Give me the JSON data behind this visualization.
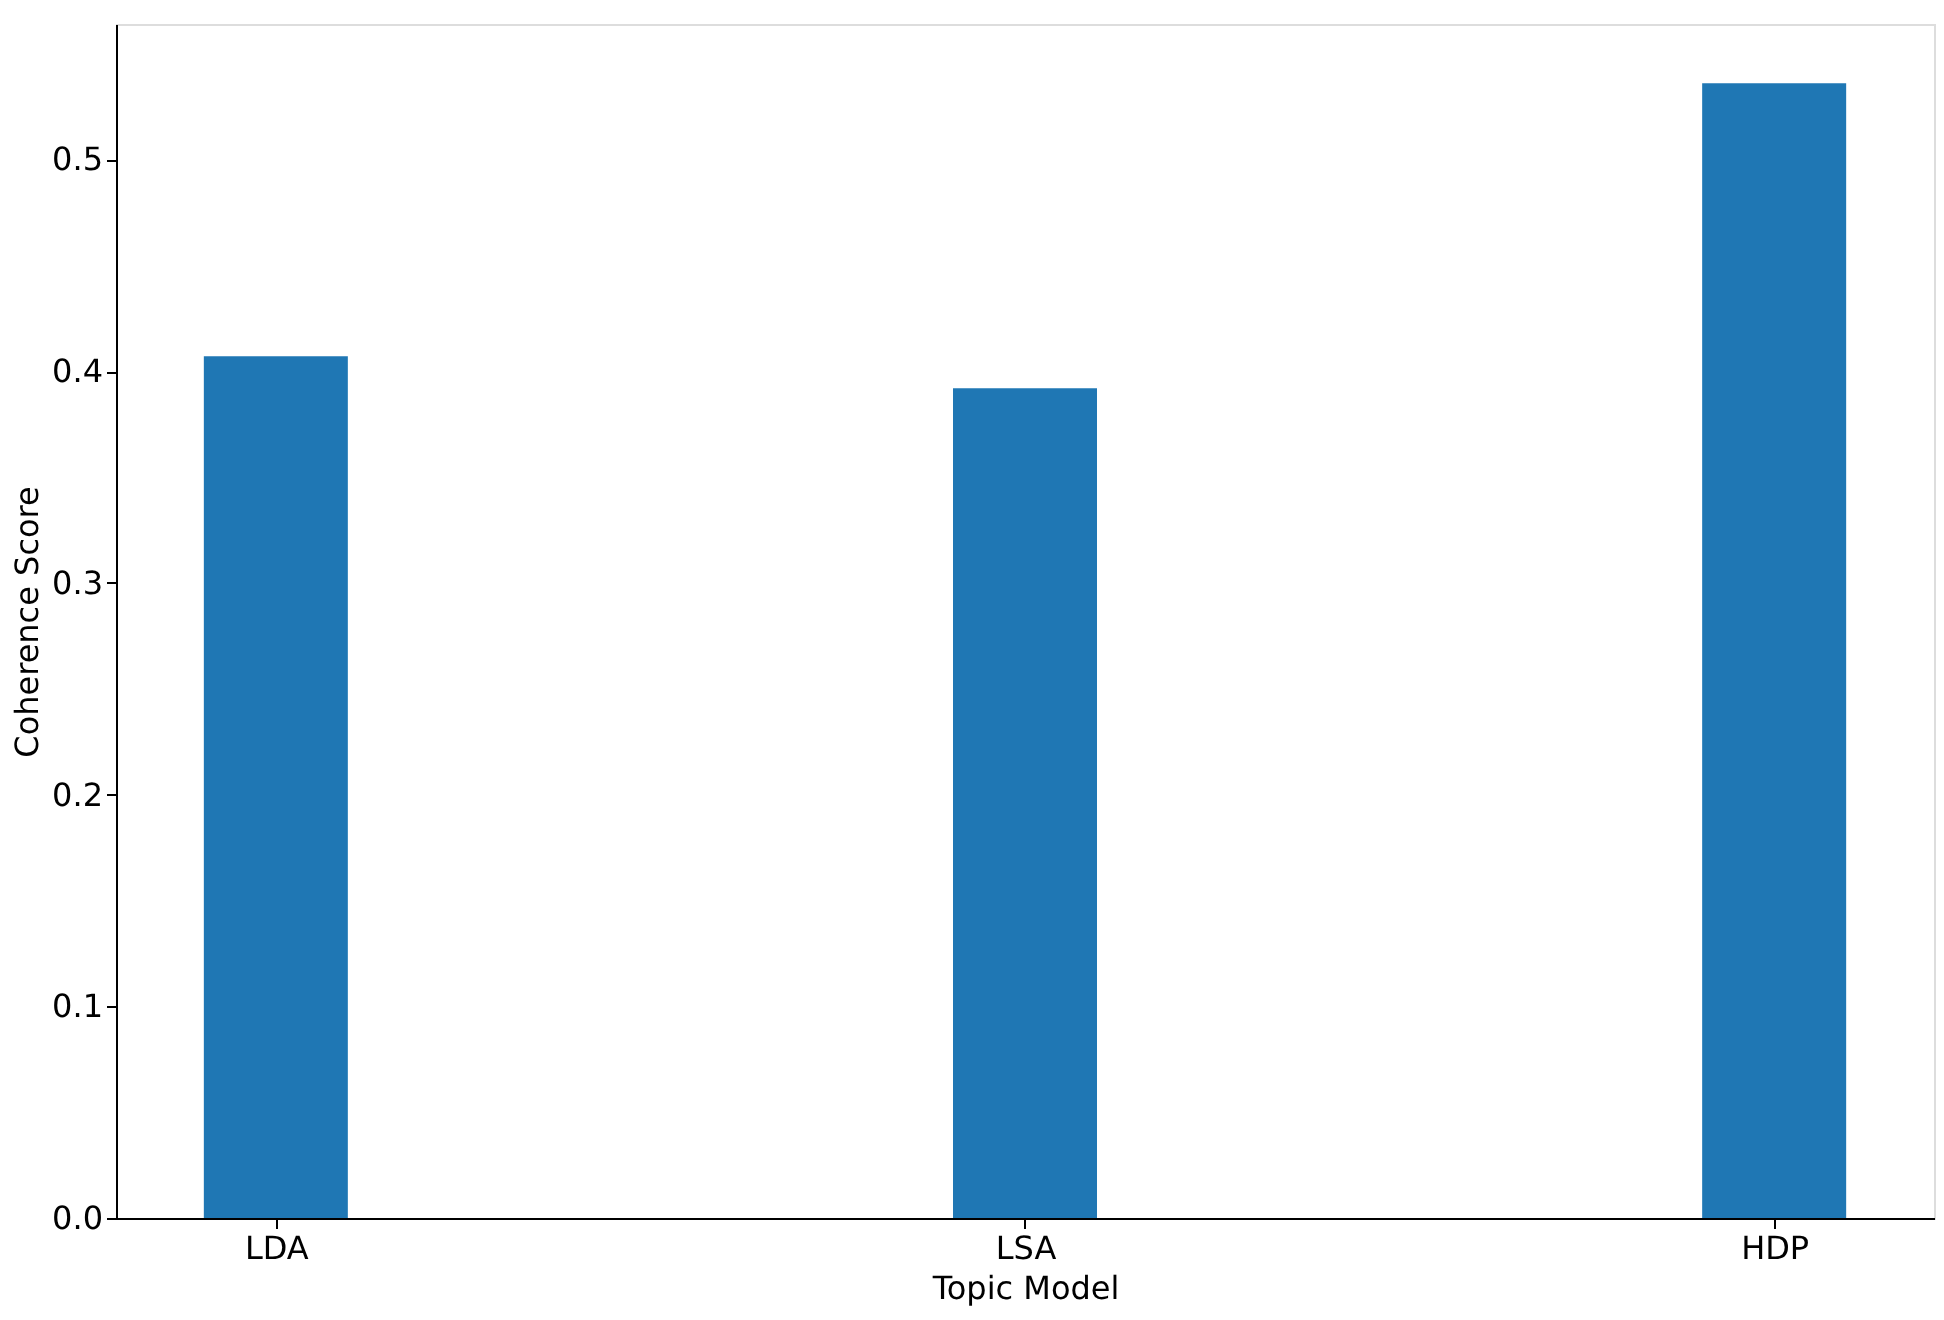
{
  "chart_data": {
    "type": "bar",
    "xlabel": "Topic Model",
    "ylabel": "Coherence Score",
    "categories": [
      "LDA",
      "LSA",
      "HDP"
    ],
    "values": [
      0.407,
      0.392,
      0.536
    ],
    "color": "#1f77b4",
    "ylim": [
      0,
      0.564
    ],
    "yticks": [
      {
        "value": 0,
        "label": "0.0"
      },
      0.1,
      0.2,
      0.3,
      0.4,
      0.5
    ],
    "grid": false
  }
}
